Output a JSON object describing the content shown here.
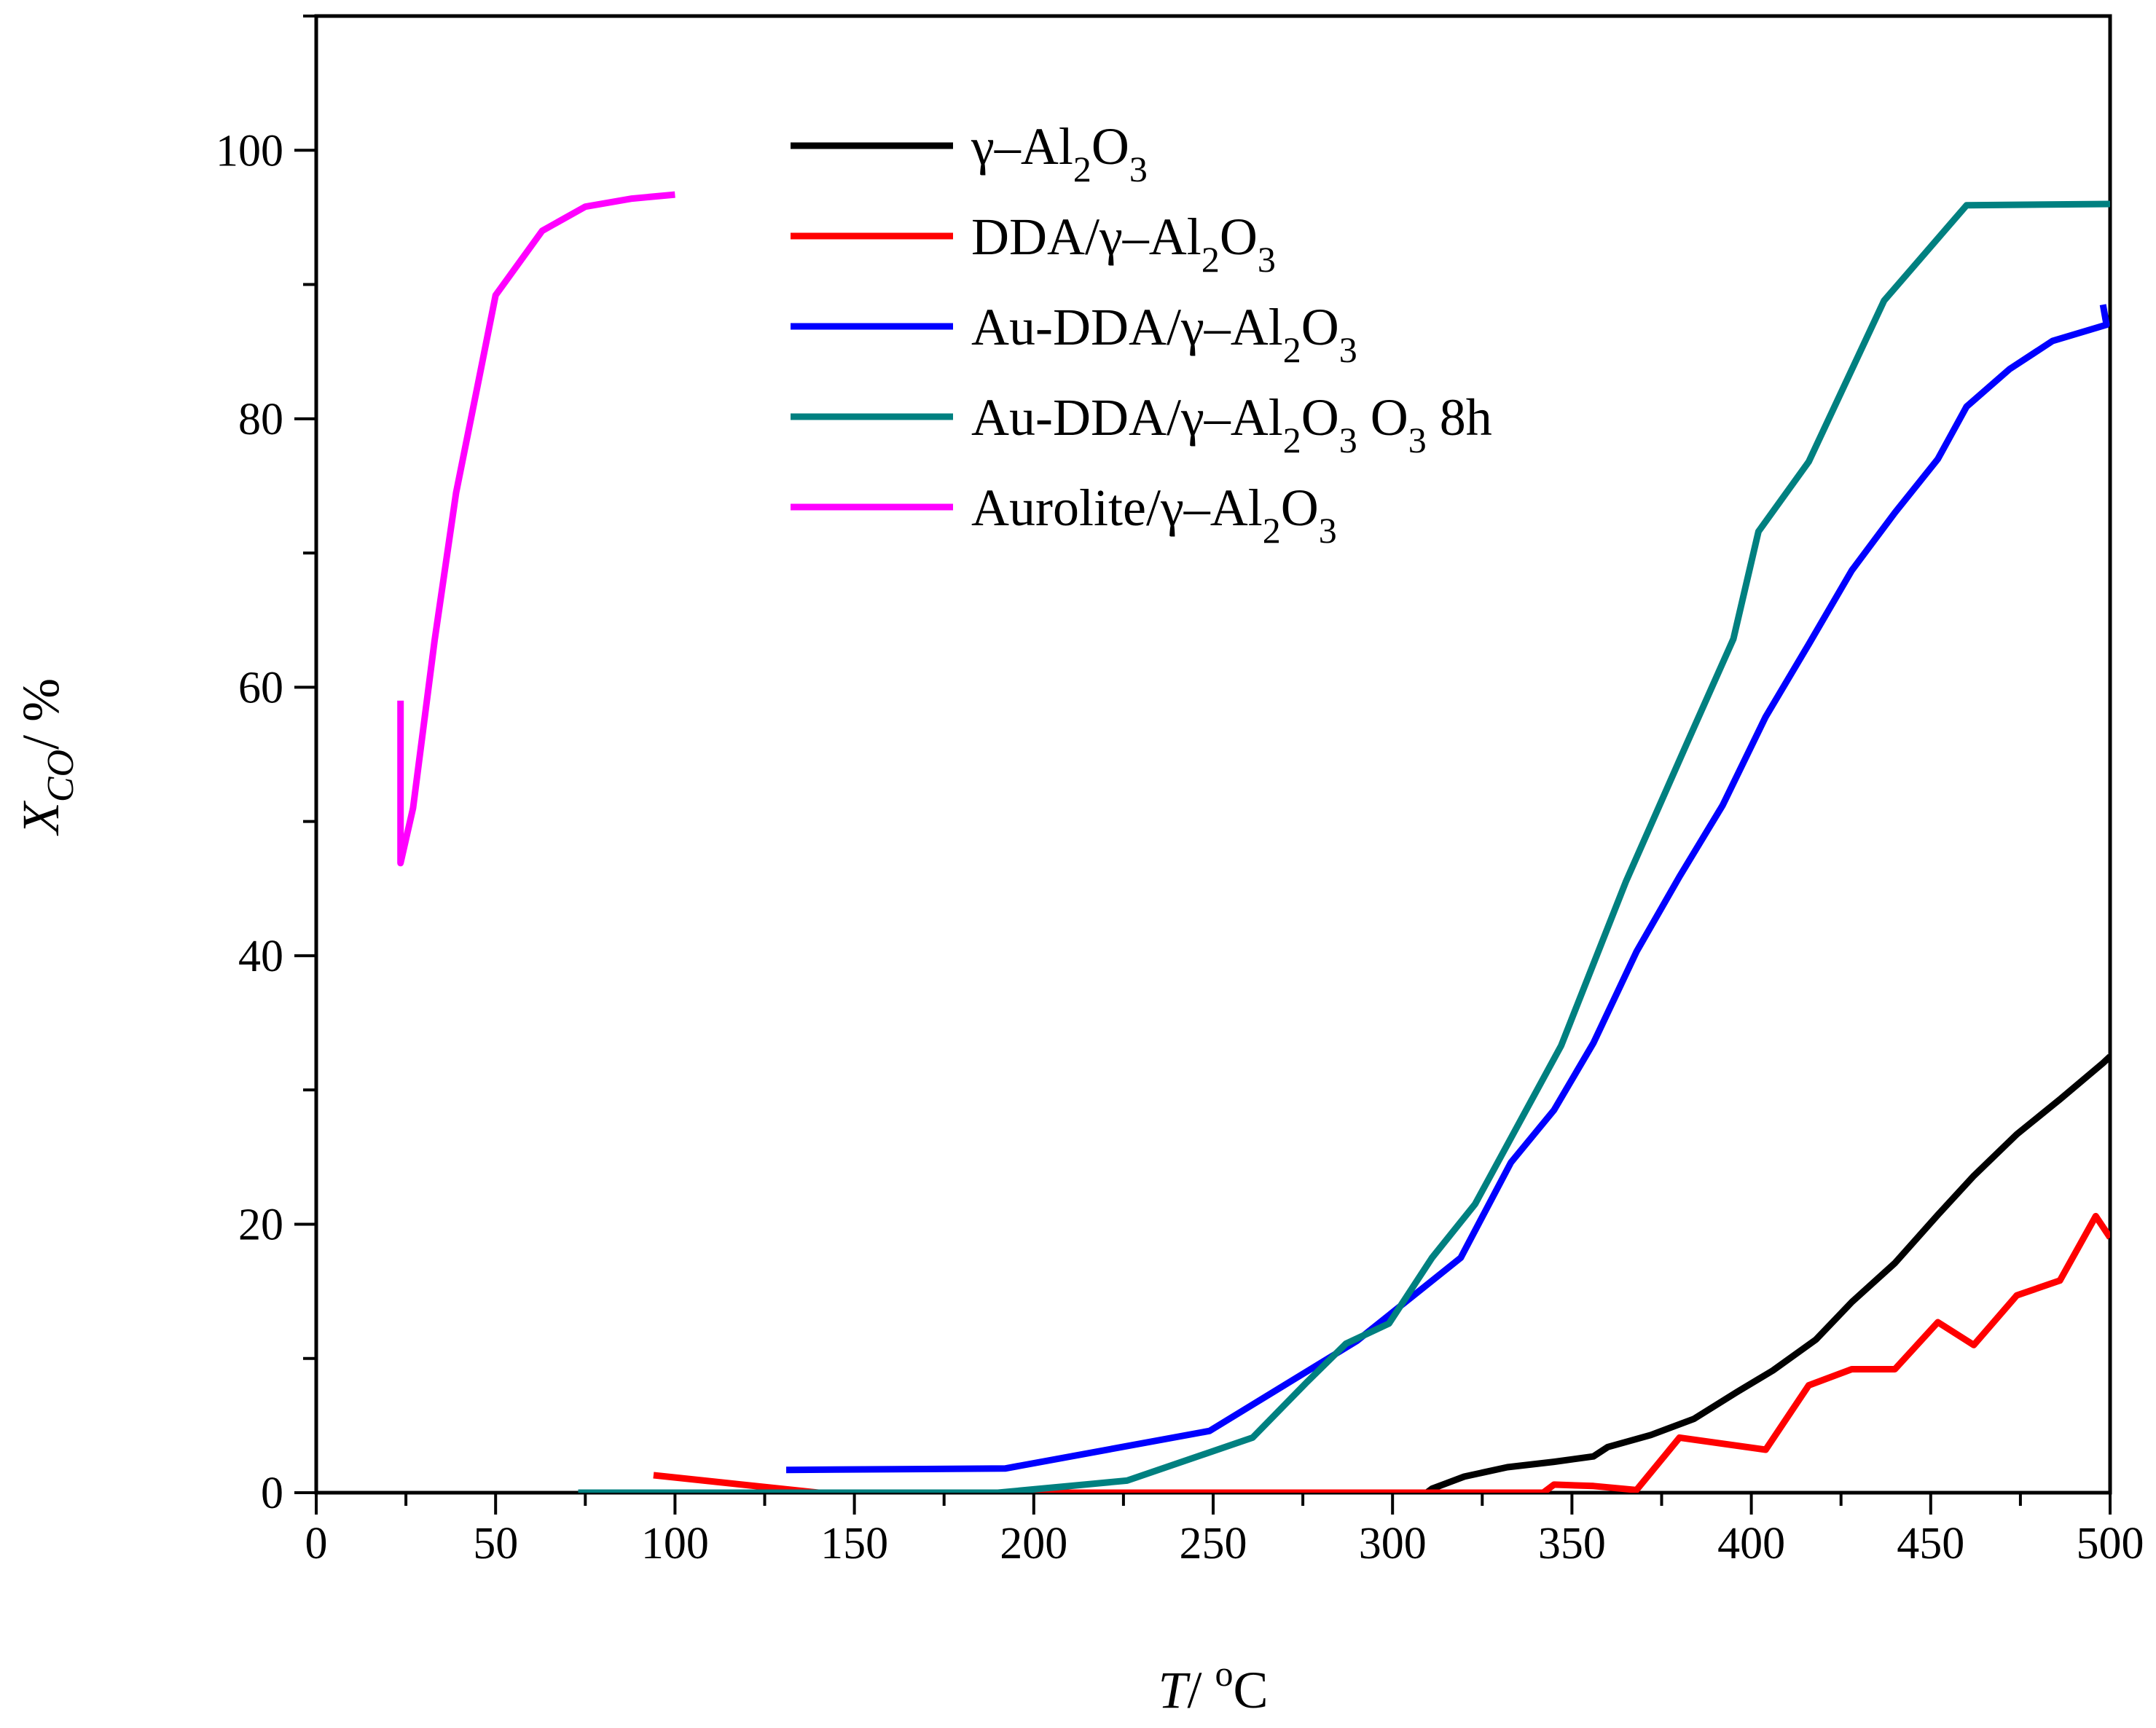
{
  "chart_data": {
    "type": "line",
    "title": "",
    "xlabel": {
      "italic": "T",
      "sep": "/ ",
      "sup": "o",
      "unit": "C"
    },
    "ylabel": {
      "italic": "X",
      "sub": "CO",
      "sep": "/ ",
      "unit": "%"
    },
    "xlim": [
      0,
      500
    ],
    "ylim": [
      0,
      110
    ],
    "xticks": [
      0,
      50,
      100,
      150,
      200,
      250,
      300,
      350,
      400,
      450,
      500
    ],
    "yticks": [
      0,
      20,
      40,
      60,
      80,
      100
    ],
    "x_minor_step": 25,
    "y_minor_step": 10,
    "grid": false,
    "legend_position": "top-center",
    "series": [
      {
        "name": "γ–Al2O3",
        "legend": {
          "prefix": "γ–Al",
          "sub1": "2",
          "mid": "O",
          "sub2": "3",
          "suffix": ""
        },
        "color": "#000000",
        "points": [
          [
            307,
            -0.5
          ],
          [
            311,
            0.3
          ],
          [
            320,
            1.2
          ],
          [
            332,
            1.9
          ],
          [
            345,
            2.3
          ],
          [
            356,
            2.7
          ],
          [
            360,
            3.4
          ],
          [
            372,
            4.3
          ],
          [
            384,
            5.5
          ],
          [
            396,
            7.5
          ],
          [
            406,
            9.1
          ],
          [
            418,
            11.4
          ],
          [
            428,
            14.2
          ],
          [
            440,
            17.1
          ],
          [
            452,
            20.7
          ],
          [
            462,
            23.6
          ],
          [
            474,
            26.7
          ],
          [
            486,
            29.3
          ],
          [
            498,
            32.0
          ],
          [
            500,
            32.5
          ]
        ]
      },
      {
        "name": "DDA/γ–Al2O3",
        "legend": {
          "prefix": "DDA/γ–Al",
          "sub1": "2",
          "mid": "O",
          "sub2": "3",
          "suffix": ""
        },
        "color": "#ff0000",
        "points": [
          [
            94,
            1.3
          ],
          [
            140,
            0.0
          ],
          [
            200,
            0.0
          ],
          [
            230,
            0.0
          ],
          [
            300,
            0.0
          ],
          [
            342,
            0.0
          ],
          [
            345,
            0.6
          ],
          [
            356,
            0.5
          ],
          [
            368,
            0.2
          ],
          [
            380,
            4.1
          ],
          [
            404,
            3.2
          ],
          [
            416,
            8.0
          ],
          [
            428,
            9.2
          ],
          [
            440,
            9.2
          ],
          [
            452,
            12.7
          ],
          [
            462,
            11.0
          ],
          [
            474,
            14.7
          ],
          [
            486,
            15.8
          ],
          [
            496,
            20.6
          ],
          [
            500,
            19.0
          ]
        ]
      },
      {
        "name": "Au-DDA/γ–Al2O3",
        "legend": {
          "prefix": "Au-DDA/γ–Al",
          "sub1": "2",
          "mid": "O",
          "sub2": "3",
          "suffix": ""
        },
        "color": "#0000ff",
        "points": [
          [
            131,
            1.7
          ],
          [
            192,
            1.8
          ],
          [
            249,
            4.6
          ],
          [
            290,
            11.3
          ],
          [
            319,
            17.5
          ],
          [
            333,
            24.6
          ],
          [
            345,
            28.5
          ],
          [
            356,
            33.5
          ],
          [
            368,
            40.3
          ],
          [
            380,
            45.9
          ],
          [
            392,
            51.2
          ],
          [
            404,
            57.8
          ],
          [
            416,
            63.2
          ],
          [
            428,
            68.7
          ],
          [
            440,
            73.0
          ],
          [
            452,
            77.0
          ],
          [
            460,
            80.9
          ],
          [
            472,
            83.7
          ],
          [
            484,
            85.8
          ],
          [
            499,
            87.0
          ],
          [
            498,
            88.5
          ]
        ]
      },
      {
        "name": "Au-DDA/γ–Al2O3 O3 8h",
        "legend": {
          "prefix": "Au-DDA/γ–Al",
          "sub1": "2",
          "mid": "O",
          "sub2": "3",
          "suffix": " O",
          "sub3": "3",
          "tail": " 8h"
        },
        "color": "#008080",
        "points": [
          [
            73,
            0.0
          ],
          [
            120,
            0.0
          ],
          [
            140,
            0.0
          ],
          [
            190,
            0.0
          ],
          [
            226,
            0.9
          ],
          [
            261,
            4.1
          ],
          [
            276,
            8.2
          ],
          [
            287,
            11.1
          ],
          [
            299,
            12.6
          ],
          [
            311,
            17.5
          ],
          [
            323,
            21.5
          ],
          [
            347,
            33.3
          ],
          [
            365,
            45.5
          ],
          [
            382,
            55.8
          ],
          [
            395,
            63.6
          ],
          [
            402,
            71.6
          ],
          [
            416,
            76.8
          ],
          [
            437,
            88.8
          ],
          [
            460,
            95.9
          ],
          [
            500,
            96.0
          ]
        ]
      },
      {
        "name": "Aurolite/γ–Al2O3",
        "legend": {
          "prefix": "Aurolite/γ–Al",
          "sub1": "2",
          "mid": "O",
          "sub2": "3",
          "suffix": ""
        },
        "color": "#ff00ff",
        "points": [
          [
            23.5,
            59.0
          ],
          [
            23.5,
            46.9
          ],
          [
            27,
            51.0
          ],
          [
            33,
            63.5
          ],
          [
            39,
            74.5
          ],
          [
            45,
            82.5
          ],
          [
            50,
            89.2
          ],
          [
            63,
            94.0
          ],
          [
            75,
            95.8
          ],
          [
            88,
            96.4
          ],
          [
            100,
            96.7
          ]
        ]
      }
    ]
  }
}
